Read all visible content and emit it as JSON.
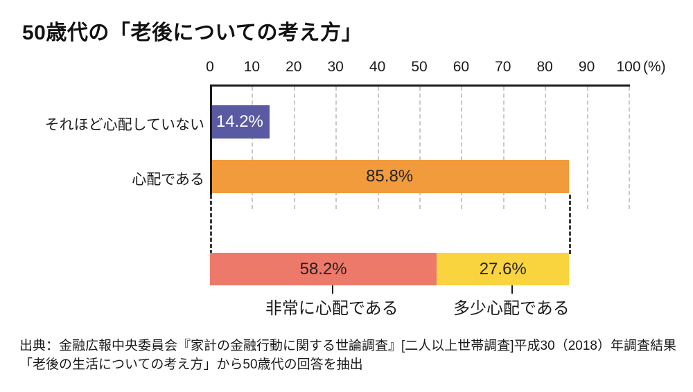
{
  "title": "50歳代の「老後についての考え方」",
  "chart_data": {
    "type": "bar",
    "orientation": "horizontal",
    "title": "50歳代の「老後についての考え方」",
    "axis": {
      "min": 0,
      "max": 100,
      "ticks": [
        0,
        10,
        20,
        30,
        40,
        50,
        60,
        70,
        80,
        90,
        100
      ],
      "unit": "(%)",
      "grid": "dashed"
    },
    "rows": [
      {
        "label": "それほど心配していない",
        "value": 14.2,
        "display": "14.2%",
        "color": "#5a5aa3",
        "text_color": "#ffffff"
      },
      {
        "label": "心配である",
        "value": 85.8,
        "display": "85.8%",
        "color": "#f29b3c",
        "text_color": "#222222"
      }
    ],
    "breakdown": {
      "of_label": "心配である",
      "total": 85.8,
      "segments": [
        {
          "label": "非常に心配である",
          "value": 58.2,
          "display": "58.2%",
          "color": "#ed796a"
        },
        {
          "label": "多少心配である",
          "value": 27.6,
          "display": "27.6%",
          "color": "#f9d43e"
        }
      ]
    }
  },
  "source": {
    "line1": "出典：金融広報中央委員会『家計の金融行動に関する世論調査』[二人以上世帯調査]平成30（2018）年調査結果",
    "line2": "「老後の生活についての考え方」から50歳代の回答を抽出"
  }
}
